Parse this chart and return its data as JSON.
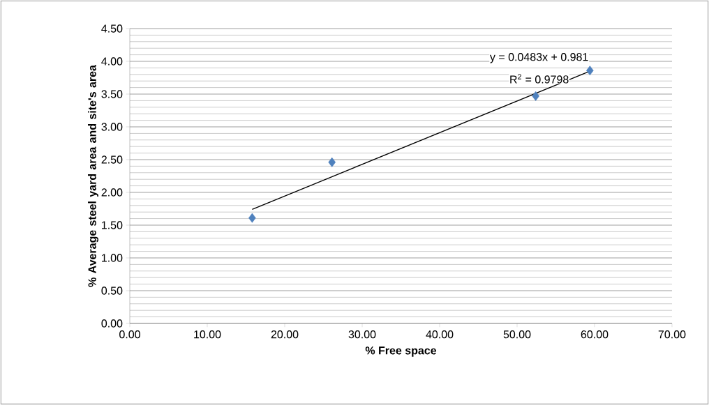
{
  "chart_data": {
    "type": "scatter",
    "xlabel": "% Free space",
    "ylabel": "% Average steel yard area and site's area",
    "annotations": [
      "y = 0.0483x + 0.981",
      "R$^{2}$ = 0.9798"
    ],
    "series": [
      {
        "color": "#4f81bd",
        "marker": "diamond",
        "x": [
          15.8,
          26.1,
          52.4,
          59.4
        ],
        "values": [
          1.61,
          2.46,
          3.47,
          3.86
        ]
      },
      {
        "type": "line",
        "color": "#000000",
        "marker": "none",
        "x": [
          15.8,
          59.4
        ],
        "values": [
          1.74,
          3.85
        ]
      }
    ],
    "xlim": [
      0,
      70
    ],
    "ylim": [
      0,
      4.5
    ],
    "grid": "y",
    "xticks": [
      {
        "value": 0,
        "label": "0.00"
      },
      {
        "value": 10,
        "label": "10.00"
      },
      {
        "value": 20,
        "label": "20.00"
      },
      {
        "value": 30,
        "label": "30.00"
      },
      {
        "value": 40,
        "label": "40.00"
      },
      {
        "value": 50,
        "label": "50.00"
      },
      {
        "value": 60,
        "label": "60.00"
      },
      {
        "value": 70,
        "label": "70.00"
      }
    ],
    "yticks": [
      {
        "value": 0,
        "label": "0.00"
      },
      {
        "value": 0.5,
        "label": "0.50"
      },
      {
        "value": 1,
        "label": "1.00"
      },
      {
        "value": 1.5,
        "label": "1.50"
      },
      {
        "value": 2,
        "label": "2.00"
      },
      {
        "value": 2.5,
        "label": "2.50"
      },
      {
        "value": 3,
        "label": "3.00"
      },
      {
        "value": 3.5,
        "label": "3.50"
      },
      {
        "value": 4,
        "label": "4.00"
      },
      {
        "value": 4.5,
        "label": "4.50"
      }
    ]
  }
}
